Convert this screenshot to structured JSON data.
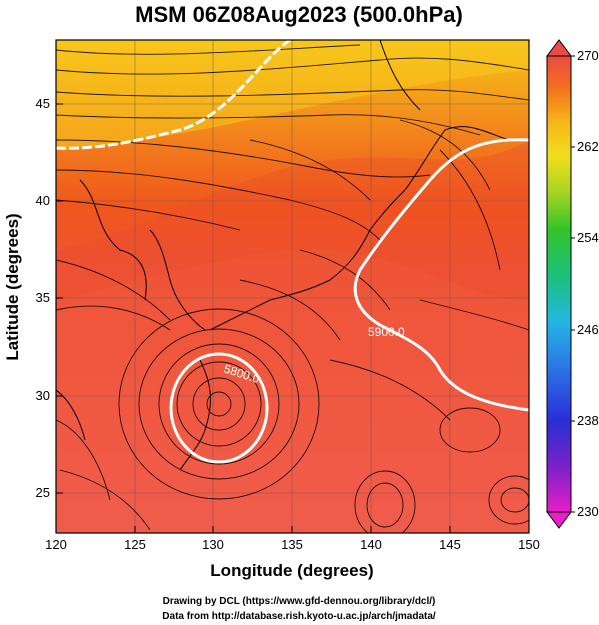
{
  "title": "MSM 06Z08Aug2023 (500.0hPa)",
  "xlabel": "Longitude (degrees)",
  "ylabel": "Latitude (degrees)",
  "credit_line1": "Drawing by DCL (https://www.gfd-dennou.org/library/dcl/)",
  "credit_line2": "Data from http://database.rish.kyoto-u.ac.jp/arch/jmadata/",
  "map": {
    "lon_range": [
      120,
      150
    ],
    "lat_range": [
      22.4,
      47.6
    ],
    "lon_ticks": [
      "120",
      "125",
      "130",
      "135",
      "140",
      "145",
      "150"
    ],
    "lat_ticks": [
      "25",
      "30",
      "35",
      "40",
      "45"
    ],
    "colorbar": {
      "min": 230,
      "max": 270,
      "ticks": [
        "230",
        "238",
        "246",
        "254",
        "262",
        "270"
      ]
    },
    "contours": [
      {
        "label": "5800.0",
        "color": "#ffffff"
      },
      {
        "label": "5900.0",
        "color": "#ffffff"
      }
    ],
    "colors": {
      "background": "#ffffff",
      "field_north": "#f6c01c",
      "field_mid": "#f26c1c",
      "field_south": "#f25c4a",
      "contour": "#ffffff",
      "streamline": "#000000"
    }
  }
}
